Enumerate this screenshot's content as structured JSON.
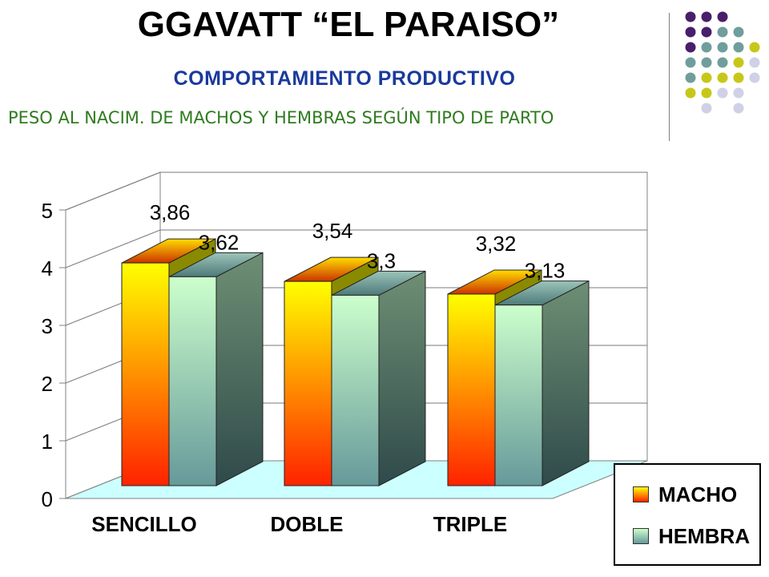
{
  "header": {
    "title": "GGAVATT “EL PARAISO”",
    "subtitle": "COMPORTAMIENTO PRODUCTIVO",
    "caption": "PESO AL NACIM. DE MACHOS Y HEMBRAS SEGÚN TIPO DE PARTO"
  },
  "decor": {
    "dot_colors": {
      "P": "#4a1e6b",
      "T": "#6f9e9c",
      "Y": "#c7c71a",
      "L": "#d0d0e6"
    },
    "dot_rows": [
      "PPP",
      "PPTT",
      "PTTTY",
      "TTTYL",
      "TYYYL",
      "YYLL",
      "-L-L"
    ]
  },
  "chart_data": {
    "type": "bar",
    "categories": [
      "SENCILLO",
      "DOBLE",
      "TRIPLE"
    ],
    "series": [
      {
        "name": "MACHO",
        "values": [
          3.86,
          3.54,
          3.32
        ],
        "labels": [
          "3,86",
          "3,54",
          "3,32"
        ]
      },
      {
        "name": "HEMBRA",
        "values": [
          3.62,
          3.3,
          3.13
        ],
        "labels": [
          "3,62",
          "3,3",
          "3,13"
        ]
      }
    ],
    "yticks": [
      0,
      1,
      2,
      3,
      4,
      5
    ],
    "ylim": [
      0,
      5
    ],
    "grid": true,
    "legend_position": "bottom-right",
    "colors": {
      "macho_top": "#ffff00",
      "macho_bottom": "#ff2200",
      "hembra_top": "#ccffcc",
      "hembra_bottom": "#66999a",
      "floor": "#ccffff"
    }
  }
}
